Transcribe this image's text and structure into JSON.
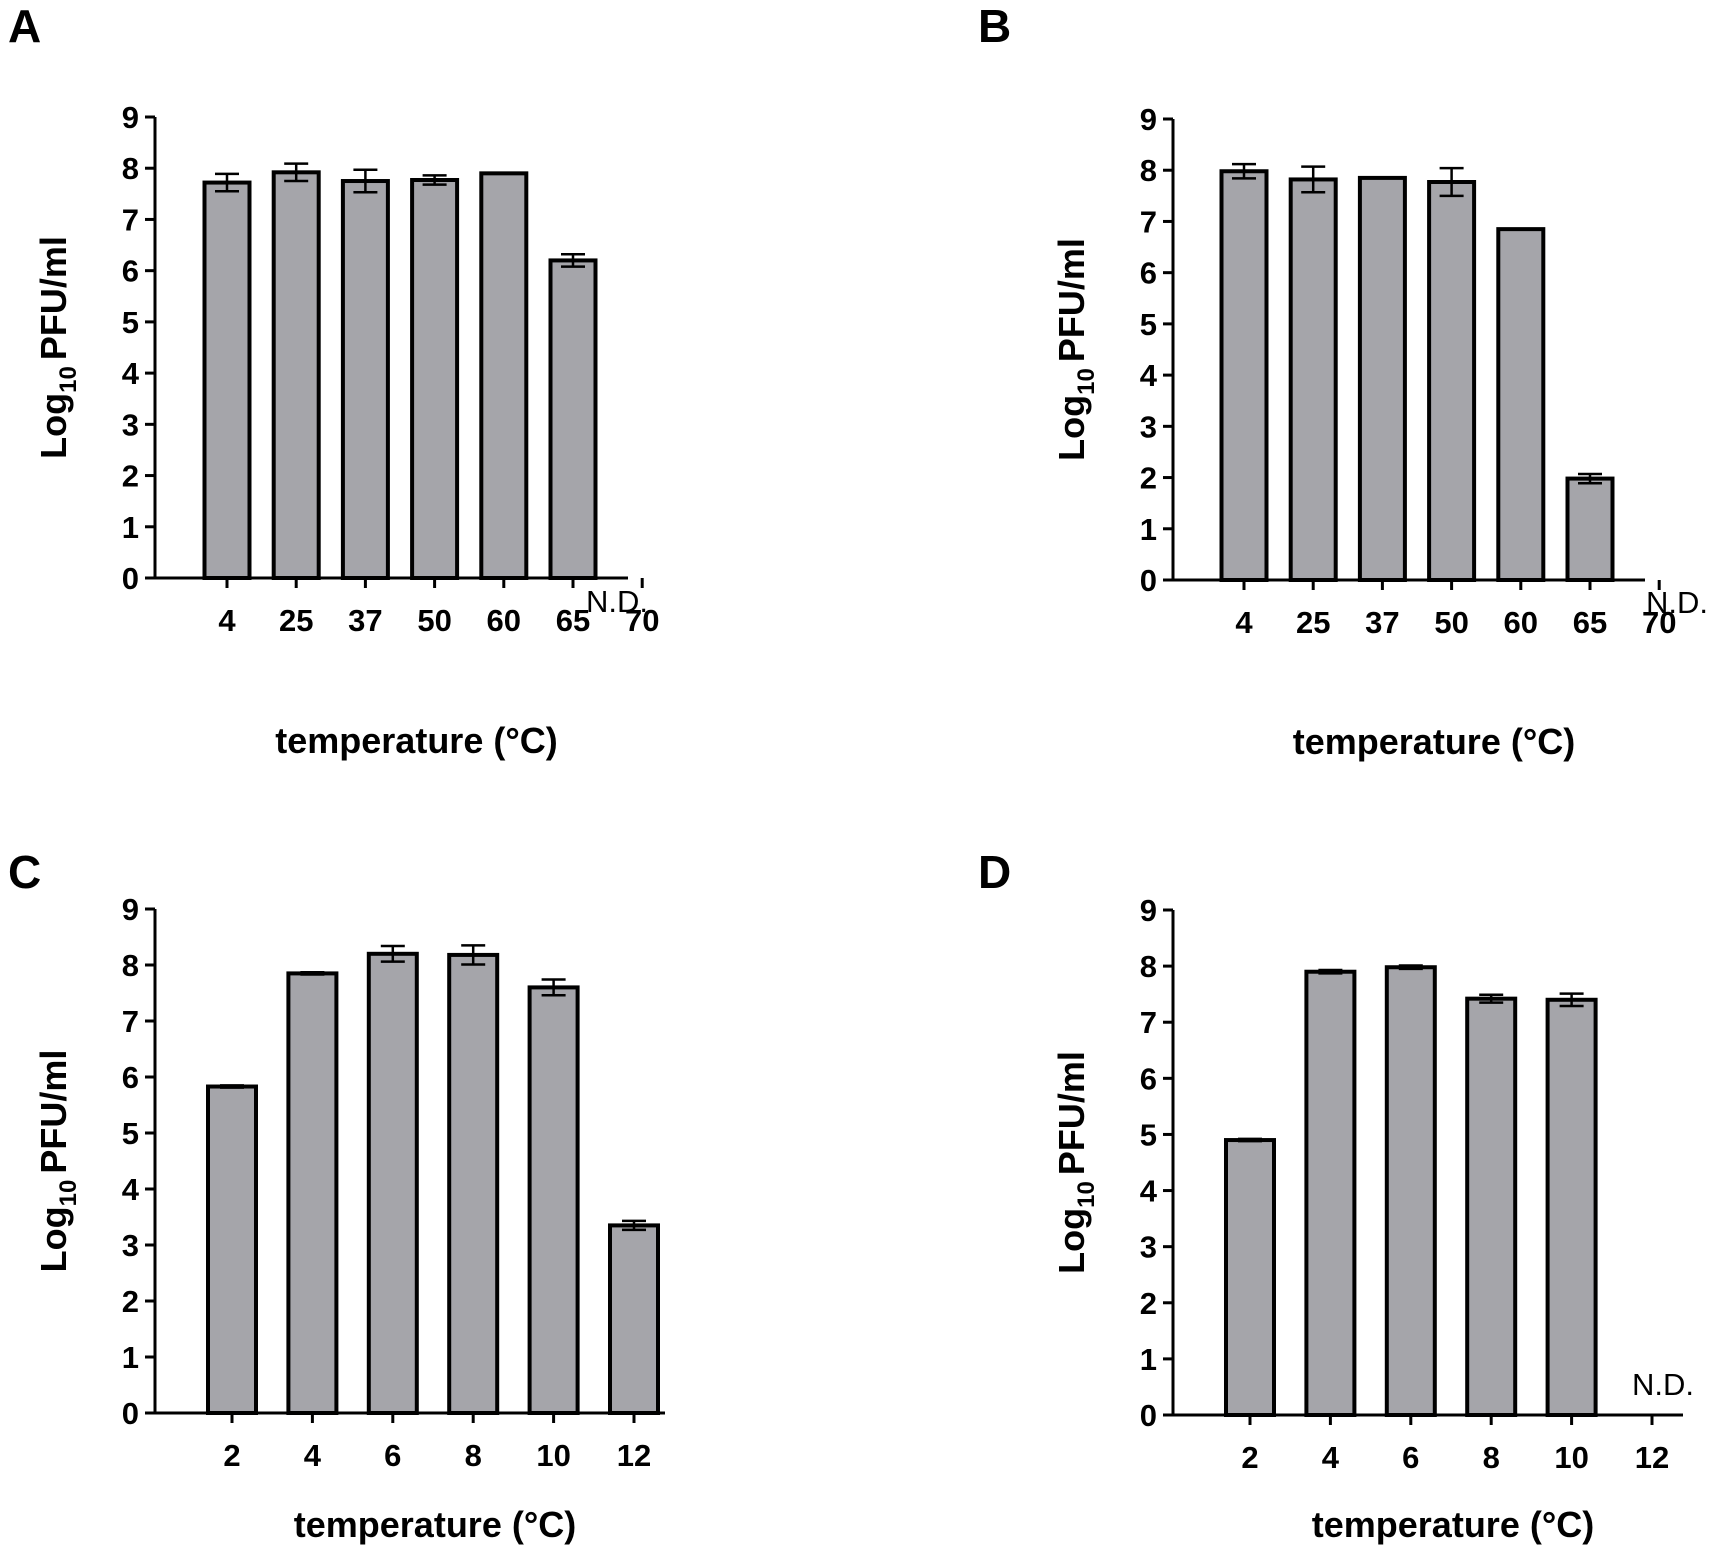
{
  "colors": {
    "bar_fill": "#a5a5aa",
    "bar_stroke": "#000000",
    "axis": "#000000"
  },
  "chart_data": [
    {
      "type": "bar",
      "panel": "A",
      "categories": [
        "4",
        "25",
        "37",
        "50",
        "60",
        "65",
        "70"
      ],
      "values": [
        7.72,
        7.92,
        7.75,
        7.77,
        7.9,
        6.2,
        null
      ],
      "errors": [
        0.17,
        0.17,
        0.22,
        0.09,
        0,
        0.12,
        null
      ],
      "ylim": [
        0,
        9
      ],
      "yticks": [
        "0",
        "1",
        "2",
        "3",
        "4",
        "5",
        "6",
        "7",
        "8",
        "9"
      ],
      "xlabel": "temperature (°C)",
      "ylabel_main": "Log",
      "ylabel_sub": "10",
      "ylabel_rest": "PFU/ml",
      "annotation": "N.D."
    },
    {
      "type": "bar",
      "panel": "B",
      "categories": [
        "4",
        "25",
        "37",
        "50",
        "60",
        "65",
        "70"
      ],
      "values": [
        7.98,
        7.82,
        7.85,
        7.77,
        6.85,
        1.98,
        null
      ],
      "errors": [
        0.14,
        0.25,
        0,
        0.27,
        0,
        0.09,
        null
      ],
      "ylim": [
        0,
        9
      ],
      "yticks": [
        "0",
        "1",
        "2",
        "3",
        "4",
        "5",
        "6",
        "7",
        "8",
        "9"
      ],
      "xlabel": "temperature (°C)",
      "ylabel_main": "Log",
      "ylabel_sub": "10",
      "ylabel_rest": "PFU/ml",
      "annotation": "N.D."
    },
    {
      "type": "bar",
      "panel": "C",
      "categories": [
        "2",
        "4",
        "6",
        "8",
        "10",
        "12"
      ],
      "values": [
        5.83,
        7.85,
        8.2,
        8.18,
        7.6,
        3.35
      ],
      "errors": [
        0.02,
        0.02,
        0.14,
        0.17,
        0.14,
        0.08
      ],
      "ylim": [
        0,
        9
      ],
      "yticks": [
        "0",
        "1",
        "2",
        "3",
        "4",
        "5",
        "6",
        "7",
        "8",
        "9"
      ],
      "xlabel": "temperature (°C)",
      "ylabel_main": "Log",
      "ylabel_sub": "10",
      "ylabel_rest": "PFU/ml",
      "annotation": ""
    },
    {
      "type": "bar",
      "panel": "D",
      "categories": [
        "2",
        "4",
        "6",
        "8",
        "10",
        "12"
      ],
      "values": [
        4.9,
        7.9,
        7.98,
        7.42,
        7.4,
        null
      ],
      "errors": [
        0.02,
        0.03,
        0.03,
        0.07,
        0.11,
        null
      ],
      "ylim": [
        0,
        9
      ],
      "yticks": [
        "0",
        "1",
        "2",
        "3",
        "4",
        "5",
        "6",
        "7",
        "8",
        "9"
      ],
      "xlabel": "temperature (°C)",
      "ylabel_main": "Log",
      "ylabel_sub": "10",
      "ylabel_rest": "PFU/ml",
      "annotation": "N.D."
    }
  ]
}
